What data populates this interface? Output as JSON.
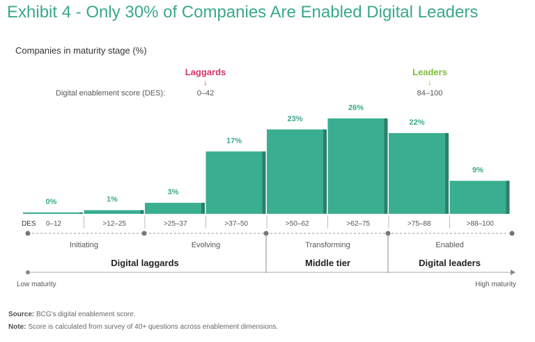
{
  "exhibit_title": "Exhibit 4 - Only 30% of Companies Are Enabled Digital Leaders",
  "subtitle": "Companies in maturity stage (%)",
  "markers": {
    "des_label": "Digital enablement score (DES):",
    "laggards": {
      "name": "Laggards",
      "arrow": "↓",
      "range": "0–42"
    },
    "leaders": {
      "name": "Leaders",
      "arrow": "↓",
      "range": "84–100"
    }
  },
  "colors": {
    "bar": "#3aae91",
    "bar_side": "#2b7f6a",
    "value_label": "#3aa88a",
    "laggards": "#d6336c",
    "leaders": "#7cbf3a",
    "axis": "#999999",
    "text": "#333333"
  },
  "chart_data": {
    "type": "bar",
    "title": "Exhibit 4 - Only 30% of Companies Are Enabled Digital Leaders",
    "ylabel": "Companies in maturity stage (%)",
    "xlabel": "DES",
    "axis_prefix": "DES",
    "categories": [
      "0–12",
      ">12–25",
      ">25–37",
      ">37–50",
      ">50–62",
      ">62–75",
      ">75–88",
      ">88–100"
    ],
    "values": [
      0,
      1,
      3,
      17,
      23,
      26,
      22,
      9
    ],
    "value_labels": [
      "0%",
      "1%",
      "3%",
      "17%",
      "23%",
      "26%",
      "22%",
      "9%"
    ],
    "ylim": [
      0,
      26
    ],
    "stages": [
      {
        "name": "Initiating",
        "bins": [
          0,
          1
        ]
      },
      {
        "name": "Evolving",
        "bins": [
          2,
          3
        ]
      },
      {
        "name": "Transforming",
        "bins": [
          4,
          5
        ]
      },
      {
        "name": "Enabled",
        "bins": [
          6,
          7
        ]
      }
    ],
    "tiers": [
      {
        "name": "Digital laggards",
        "bins": [
          0,
          3
        ]
      },
      {
        "name": "Middle tier",
        "bins": [
          4,
          5
        ]
      },
      {
        "name": "Digital leaders",
        "bins": [
          6,
          7
        ]
      }
    ],
    "axis_ends": {
      "low": "Low maturity",
      "high": "High maturity"
    }
  },
  "footer": {
    "source_label": "Source:",
    "source_text": "BCG's digital enablement score.",
    "note_label": "Note:",
    "note_text": "Score is calculated from survey of 40+ questions across enablement dimensions."
  }
}
